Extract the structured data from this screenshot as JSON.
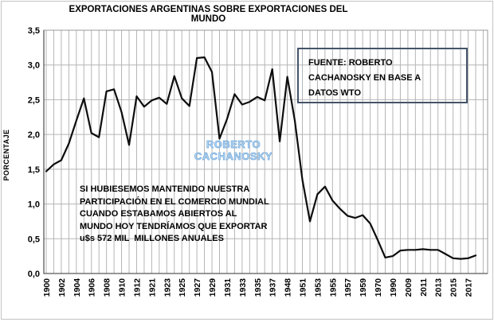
{
  "title": "EXPORTACIONES ARGENTINAS SOBRE EXPORTACIONES DEL MUNDO",
  "y_axis_title": "PORCENTAJE",
  "watermark": "ROBERTO CACHANOSKY",
  "source_box": {
    "text": "FUENTE: ROBERTO\nCACHANOSKY EN BASE A\nDATOS WTO",
    "border_color": "#44546a"
  },
  "annotation": {
    "text": "SI HUBIESEMOS MANTENIDO NUESTRA\nPARTICIPACIÓN EN EL COMERCIO MUNDIAL\nCUANDO ESTABAMOS ABIERTOS AL\nMUNDO HOY TENDRÍAMOS QUE EXPORTAR\nu$s 572 MIL  MILLONES ANUALES"
  },
  "chart_data": {
    "type": "line",
    "title": "EXPORTACIONES ARGENTINAS SOBRE EXPORTACIONES DEL MUNDO",
    "xlabel": "",
    "ylabel": "PORCENTAJE",
    "ylim": [
      0,
      3.5
    ],
    "y_tick_step": 0.5,
    "y_tick_labels": [
      "0,0",
      "0,5",
      "1,0",
      "1,5",
      "2,0",
      "2,5",
      "3,0",
      "3,5"
    ],
    "grid": true,
    "legend_position": "none",
    "x_labels_every": 2,
    "x_tick_labels": [
      "1900",
      "1902",
      "1904",
      "1906",
      "1908",
      "1910",
      "1912",
      "1921",
      "1923",
      "1925",
      "1927",
      "1929",
      "1931",
      "1933",
      "1935",
      "1937",
      "1948",
      "1951",
      "1953",
      "1955",
      "1957",
      "1959",
      "1970",
      "1990",
      "2009",
      "2011",
      "2013",
      "2015",
      "2017"
    ],
    "years": [
      1900,
      1901,
      1902,
      1903,
      1904,
      1905,
      1906,
      1907,
      1908,
      1909,
      1910,
      1911,
      1912,
      1913,
      1921,
      1922,
      1923,
      1924,
      1925,
      1926,
      1927,
      1928,
      1929,
      1930,
      1931,
      1932,
      1933,
      1934,
      1935,
      1936,
      1937,
      1938,
      1948,
      1950,
      1951,
      1952,
      1953,
      1954,
      1955,
      1956,
      1957,
      1958,
      1959,
      1960,
      1970,
      1980,
      1990,
      2000,
      2009,
      2010,
      2011,
      2012,
      2013,
      2014,
      2015,
      2016,
      2017,
      2018
    ],
    "values": [
      1.47,
      1.57,
      1.63,
      1.87,
      2.2,
      2.52,
      2.02,
      1.96,
      2.62,
      2.65,
      2.32,
      1.85,
      2.55,
      2.4,
      2.49,
      2.53,
      2.44,
      2.84,
      2.52,
      2.41,
      3.1,
      3.11,
      2.9,
      1.94,
      2.22,
      2.58,
      2.43,
      2.47,
      2.54,
      2.49,
      2.94,
      1.9,
      2.83,
      2.2,
      1.35,
      0.75,
      1.14,
      1.25,
      1.05,
      0.93,
      0.83,
      0.8,
      0.84,
      0.72,
      0.48,
      0.23,
      0.25,
      0.33,
      0.34,
      0.34,
      0.35,
      0.34,
      0.34,
      0.28,
      0.22,
      0.21,
      0.22,
      0.26
    ],
    "series_color": "#0d0d0d",
    "gridline_color": "#b5b5b5",
    "axis_color": "#595959",
    "frame_color": "#9a9a9a"
  }
}
